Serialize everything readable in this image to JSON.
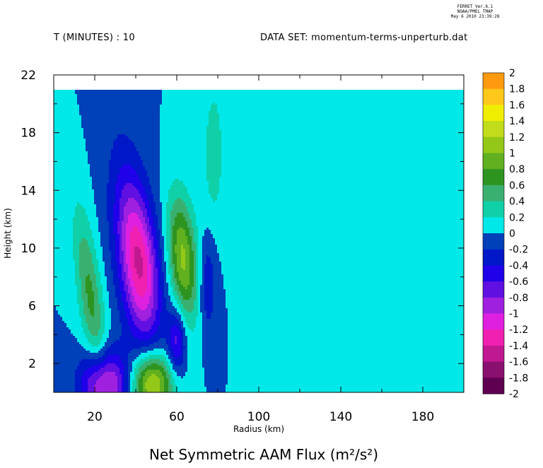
{
  "header": {
    "ferret_lines": [
      "FERRET Ver.6.1",
      "NOAA/PMEL TMAP",
      "May 6 2010 23:39:28"
    ],
    "time_label": "T (MINUTES) : 10",
    "dataset_label": "DATA SET: momentum-terms-unperturb.dat"
  },
  "chart_data": {
    "type": "heatmap",
    "title": "Net Symmetric AAM Flux",
    "units": "(m²/s²)",
    "xlabel": "Radius (km)",
    "ylabel": "Height (km)",
    "xlim": [
      0,
      200
    ],
    "ylim": [
      0,
      22
    ],
    "data_top": 21,
    "x_ticks": [
      20,
      60,
      100,
      140,
      180
    ],
    "y_ticks": [
      2,
      6,
      10,
      14,
      18,
      22
    ],
    "colorbar_range": [
      -2,
      2
    ],
    "colorbar_step": 0.2,
    "colorbar_labels": [
      "2",
      "1.8",
      "1.6",
      "1.4",
      "1.2",
      "1",
      "0.8",
      "0.6",
      "0.4",
      "0.2",
      "0",
      "-0.2",
      "-0.4",
      "-0.6",
      "-0.8",
      "-1",
      "-1.2",
      "-1.4",
      "-1.6",
      "-1.8",
      "-2"
    ],
    "colors": [
      "#7a0018",
      "#a00010",
      "#c80014",
      "#e8001c",
      "#ff3010",
      "#ff6a10",
      "#ff9a10",
      "#ffc81a",
      "#f0ee00",
      "#c0dc1a",
      "#94c818",
      "#60b020",
      "#2e9420",
      "#3ab070",
      "#10d0a8",
      "#00e8e8",
      "#10c0e8",
      "#1090e0",
      "#1068cc",
      "#0040b8",
      "#0018c8",
      "#2000e8",
      "#6010e0",
      "#a020e0",
      "#e020e0",
      "#f020b0",
      "#c01890",
      "#8a1070",
      "#600050"
    ],
    "features": [
      {
        "name": "negative-core",
        "x": 42,
        "y": 8.8,
        "value": -0.95
      },
      {
        "name": "positive-core",
        "x": 63,
        "y": 9.3,
        "value": 0.95
      },
      {
        "name": "positive-low-left",
        "x": 18,
        "y": 6.5,
        "value": 0.5
      },
      {
        "name": "negative-surface",
        "x": 25,
        "y": 0.5,
        "value": -0.8
      },
      {
        "name": "positive-surface",
        "x": 48,
        "y": 0.6,
        "value": 0.9
      },
      {
        "name": "negative-small",
        "x": 60,
        "y": 3.5,
        "value": -0.5
      },
      {
        "name": "negative-right",
        "x": 75,
        "y": 7.5,
        "value": -0.3
      },
      {
        "name": "positive-upper-plume",
        "x": 78,
        "y": 17.5,
        "value": 0.2
      }
    ]
  }
}
